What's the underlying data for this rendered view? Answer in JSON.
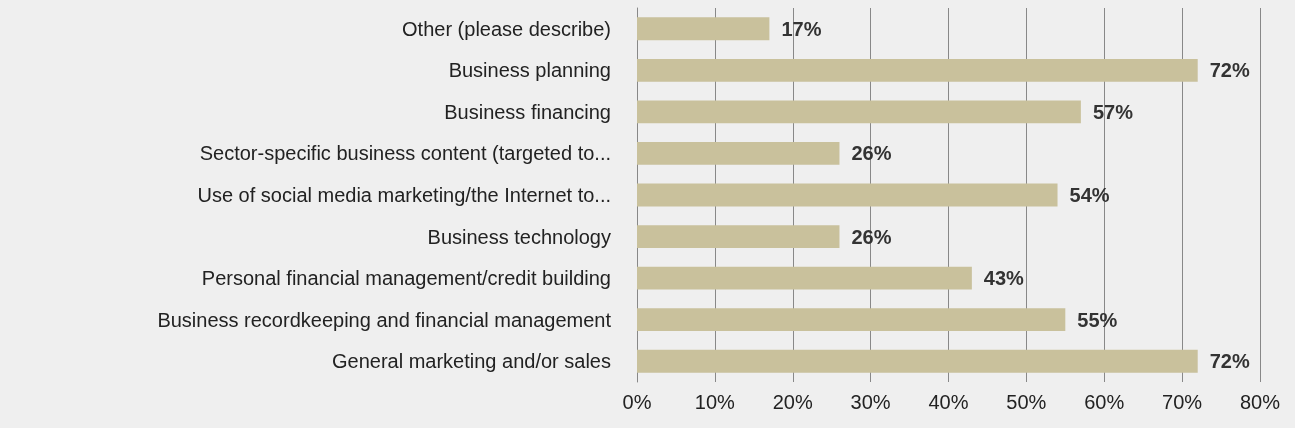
{
  "chart_data": {
    "type": "bar",
    "orientation": "horizontal",
    "categories": [
      "Other (please describe)",
      "Business planning",
      "Business financing",
      "Sector-specific business content (targeted to...",
      "Use of social media marketing/the Internet to...",
      "Business technology",
      "Personal financial management/credit building",
      "Business recordkeeping and financial management",
      "General marketing and/or sales"
    ],
    "values": [
      17,
      72,
      57,
      26,
      54,
      26,
      43,
      55,
      72
    ],
    "value_labels": [
      "17%",
      "72%",
      "57%",
      "26%",
      "54%",
      "26%",
      "43%",
      "55%",
      "72%"
    ],
    "color": "#c9c19c",
    "xlim": [
      0,
      80
    ],
    "xticks": [
      {
        "value": 0,
        "label": "0%"
      },
      {
        "value": 10,
        "label": "10%"
      },
      {
        "value": 20,
        "label": "20%"
      },
      {
        "value": 30,
        "label": "30%"
      },
      {
        "value": 40,
        "label": "40%"
      },
      {
        "value": 50,
        "label": "50%"
      },
      {
        "value": 60,
        "label": "60%"
      },
      {
        "value": 70,
        "label": "70%"
      },
      {
        "value": 80,
        "label": "80%"
      }
    ],
    "grid": "x"
  }
}
